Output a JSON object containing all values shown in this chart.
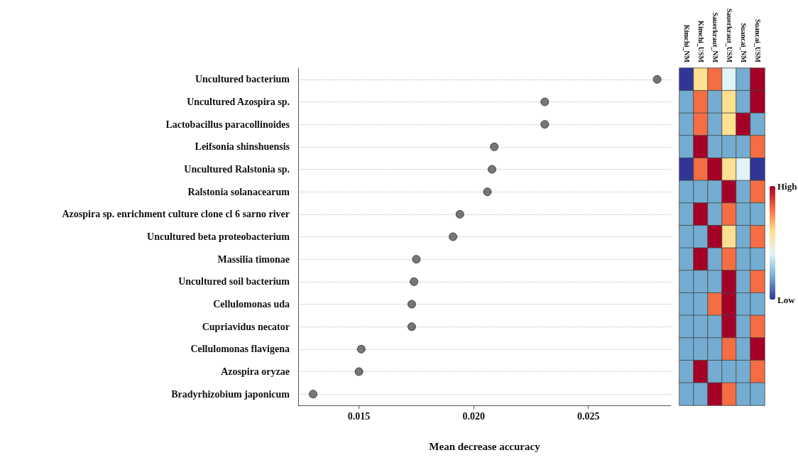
{
  "chart_data": [
    {
      "type": "scatter",
      "orientation": "horizontal",
      "xlabel": "Mean decrease accuracy",
      "categories": [
        "Uncultured bacterium",
        "Uncultured Azospira sp.",
        "Lactobacillus paracollinoides",
        "Leifsonia shinshuensis",
        "Uncultured Ralstonia sp.",
        "Ralstonia solanacearum",
        "Azospira sp. enrichment culture clone cl 6 sarno river",
        "Uncultured beta proteobacterium",
        "Massilia timonae",
        "Uncultured soil bacterium",
        "Cellulomonas uda",
        "Cupriavidus necator",
        "Cellulomonas flavigena",
        "Azospira oryzae",
        "Bradyrhizobium japonicum"
      ],
      "values": [
        0.028,
        0.0231,
        0.0231,
        0.0209,
        0.0208,
        0.0206,
        0.0194,
        0.0191,
        0.0175,
        0.0174,
        0.0173,
        0.0173,
        0.0151,
        0.015,
        0.013
      ],
      "color": "#555555",
      "marker": "circle",
      "xlim": [
        0.01235,
        0.0286
      ],
      "xticks": [
        0.015,
        {
          "value": 0.02,
          "label": "0.020"
        },
        0.025
      ],
      "grid": "y"
    },
    {
      "type": "heatmap",
      "categories": [
        "Kimchi_NM",
        "Kimchi_USM",
        "Sauerkraut_NM",
        "Sauerkraut_USM",
        "Suancai_NM",
        "Suancai_USM"
      ],
      "y_categories": [
        null,
        null,
        null,
        null,
        null,
        null,
        null,
        null,
        null,
        null,
        null,
        null,
        null,
        null,
        null
      ],
      "cells": [
        [
          0,
          0.6,
          0.8,
          0.4,
          0.2,
          1
        ],
        [
          0.2,
          0.8,
          0.2,
          0.6,
          0.2,
          1
        ],
        [
          0.2,
          0.8,
          0.2,
          0.6,
          1,
          0.2
        ],
        [
          0.2,
          1,
          0.2,
          0.2,
          0.2,
          0.8
        ],
        [
          0,
          0.8,
          1,
          0.6,
          0.4,
          0
        ],
        [
          0.2,
          0.2,
          0.2,
          1,
          0.2,
          0.8
        ],
        [
          0.2,
          1,
          0.2,
          0.8,
          0.2,
          0.2
        ],
        [
          0.2,
          0.2,
          1,
          0.6,
          0.2,
          0.8
        ],
        [
          0.2,
          1,
          0.2,
          0.8,
          0.2,
          0.2
        ],
        [
          0.2,
          0.2,
          0.2,
          1,
          0.2,
          0.8
        ],
        [
          0.2,
          0.2,
          0.8,
          1,
          0.2,
          0.2
        ],
        [
          0.2,
          0.2,
          0.2,
          1,
          0.2,
          0.8
        ],
        [
          0.2,
          0.2,
          0.2,
          0.8,
          0.2,
          1
        ],
        [
          0.2,
          1,
          0.2,
          0.2,
          0.2,
          0.8
        ],
        [
          0.2,
          0.2,
          1,
          0.8,
          0.2,
          0.2
        ]
      ],
      "clim": [
        0,
        1
      ],
      "cticks": [
        {
          "value": 1,
          "label": "High"
        },
        {
          "value": 0,
          "label": "Low"
        }
      ],
      "tick_labels": "x"
    }
  ]
}
